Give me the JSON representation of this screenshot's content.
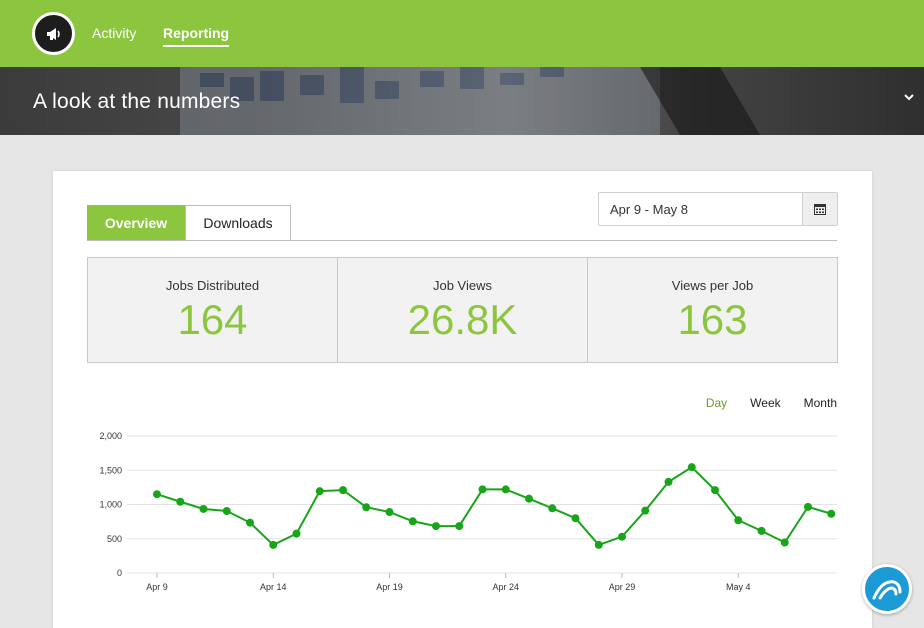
{
  "nav": {
    "logo_icon": "megaphone-icon",
    "items": [
      {
        "label": "Activity",
        "active": false
      },
      {
        "label": "Reporting",
        "active": true
      }
    ]
  },
  "hero": {
    "title": "A look at the numbers",
    "toggle_icon": "chevron-down-icon"
  },
  "tabs": [
    {
      "label": "Overview",
      "active": true
    },
    {
      "label": "Downloads",
      "active": false
    }
  ],
  "date_range": {
    "value": "Apr 9  - May 8",
    "icon": "calendar-icon"
  },
  "stats": [
    {
      "label": "Jobs Distributed",
      "value": "164"
    },
    {
      "label": "Job Views",
      "value": "26.8K"
    },
    {
      "label": "Views per Job",
      "value": "163"
    }
  ],
  "range_options": [
    {
      "label": "Day",
      "active": true
    },
    {
      "label": "Week",
      "active": false
    },
    {
      "label": "Month",
      "active": false
    }
  ],
  "colors": {
    "brand_green": "#8cc63f",
    "line_green": "#19a519",
    "fab_blue": "#1c9ad6"
  },
  "chart_data": {
    "type": "line",
    "x": [
      "Apr 9",
      "Apr 10",
      "Apr 11",
      "Apr 12",
      "Apr 13",
      "Apr 14",
      "Apr 15",
      "Apr 16",
      "Apr 17",
      "Apr 18",
      "Apr 19",
      "Apr 20",
      "Apr 21",
      "Apr 22",
      "Apr 23",
      "Apr 24",
      "Apr 25",
      "Apr 26",
      "Apr 27",
      "Apr 28",
      "Apr 29",
      "Apr 30",
      "May 1",
      "May 2",
      "May 3",
      "May 4",
      "May 5",
      "May 6",
      "May 7",
      "May 8"
    ],
    "series": [
      {
        "values": [
          1150,
          1040,
          935,
          905,
          735,
          410,
          575,
          1195,
          1210,
          960,
          890,
          755,
          685,
          685,
          1220,
          1220,
          1085,
          945,
          800,
          410,
          530,
          910,
          1330,
          1545,
          1210,
          770,
          615,
          445,
          965,
          865
        ]
      }
    ],
    "x_tick_labels": [
      "Apr 9",
      "Apr 14",
      "Apr 19",
      "Apr 24",
      "Apr 29",
      "May 4"
    ],
    "y_tick_labels": [
      "0",
      "500",
      "1,000",
      "1,500",
      "2,000"
    ],
    "ylim": [
      0,
      2000
    ],
    "grid": true
  },
  "help_button_icon": "help-widget-icon"
}
